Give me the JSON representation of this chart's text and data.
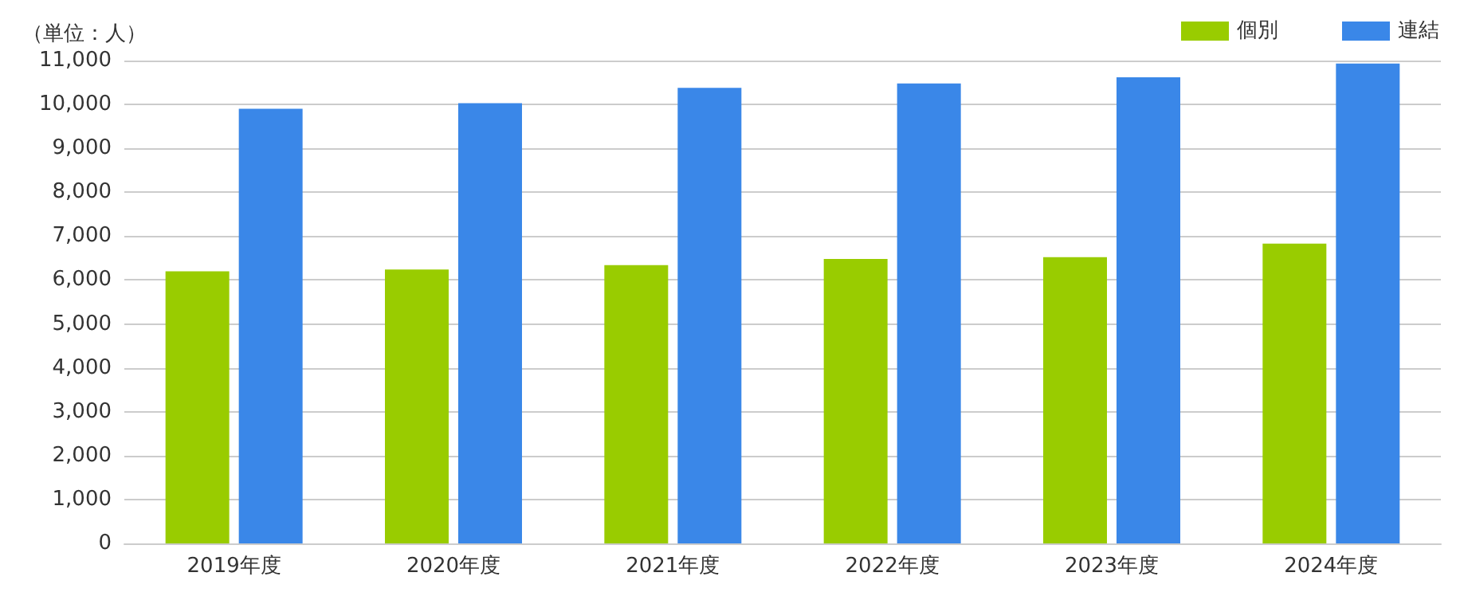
{
  "chart_data": {
    "type": "bar",
    "ylabel": "（単位：人）",
    "categories": [
      "2019年度",
      "2020年度",
      "2021年度",
      "2022年度",
      "2023年度",
      "2024年度"
    ],
    "series": [
      {
        "name": "個別",
        "color": "#99cc00",
        "values": [
          6200,
          6240,
          6340,
          6480,
          6520,
          6830
        ]
      },
      {
        "name": "連結",
        "color": "#3a87e8",
        "values": [
          9900,
          10030,
          10380,
          10480,
          10620,
          10930
        ]
      }
    ],
    "ylim": [
      0,
      11000
    ],
    "yticks": [
      0,
      {
        "value": 1000,
        "label": "1,000"
      },
      {
        "value": 2000,
        "label": "2,000"
      },
      {
        "value": 3000,
        "label": "3,000"
      },
      {
        "value": 4000,
        "label": "4,000"
      },
      {
        "value": 5000,
        "label": "5,000"
      },
      {
        "value": 6000,
        "label": "6,000"
      },
      {
        "value": 7000,
        "label": "7,000"
      },
      {
        "value": 8000,
        "label": "8,000"
      },
      {
        "value": 9000,
        "label": "9,000"
      },
      {
        "value": 10000,
        "label": "10,000"
      },
      {
        "value": 11000,
        "label": "11,000"
      }
    ],
    "grid": "y",
    "legend": "top right"
  }
}
